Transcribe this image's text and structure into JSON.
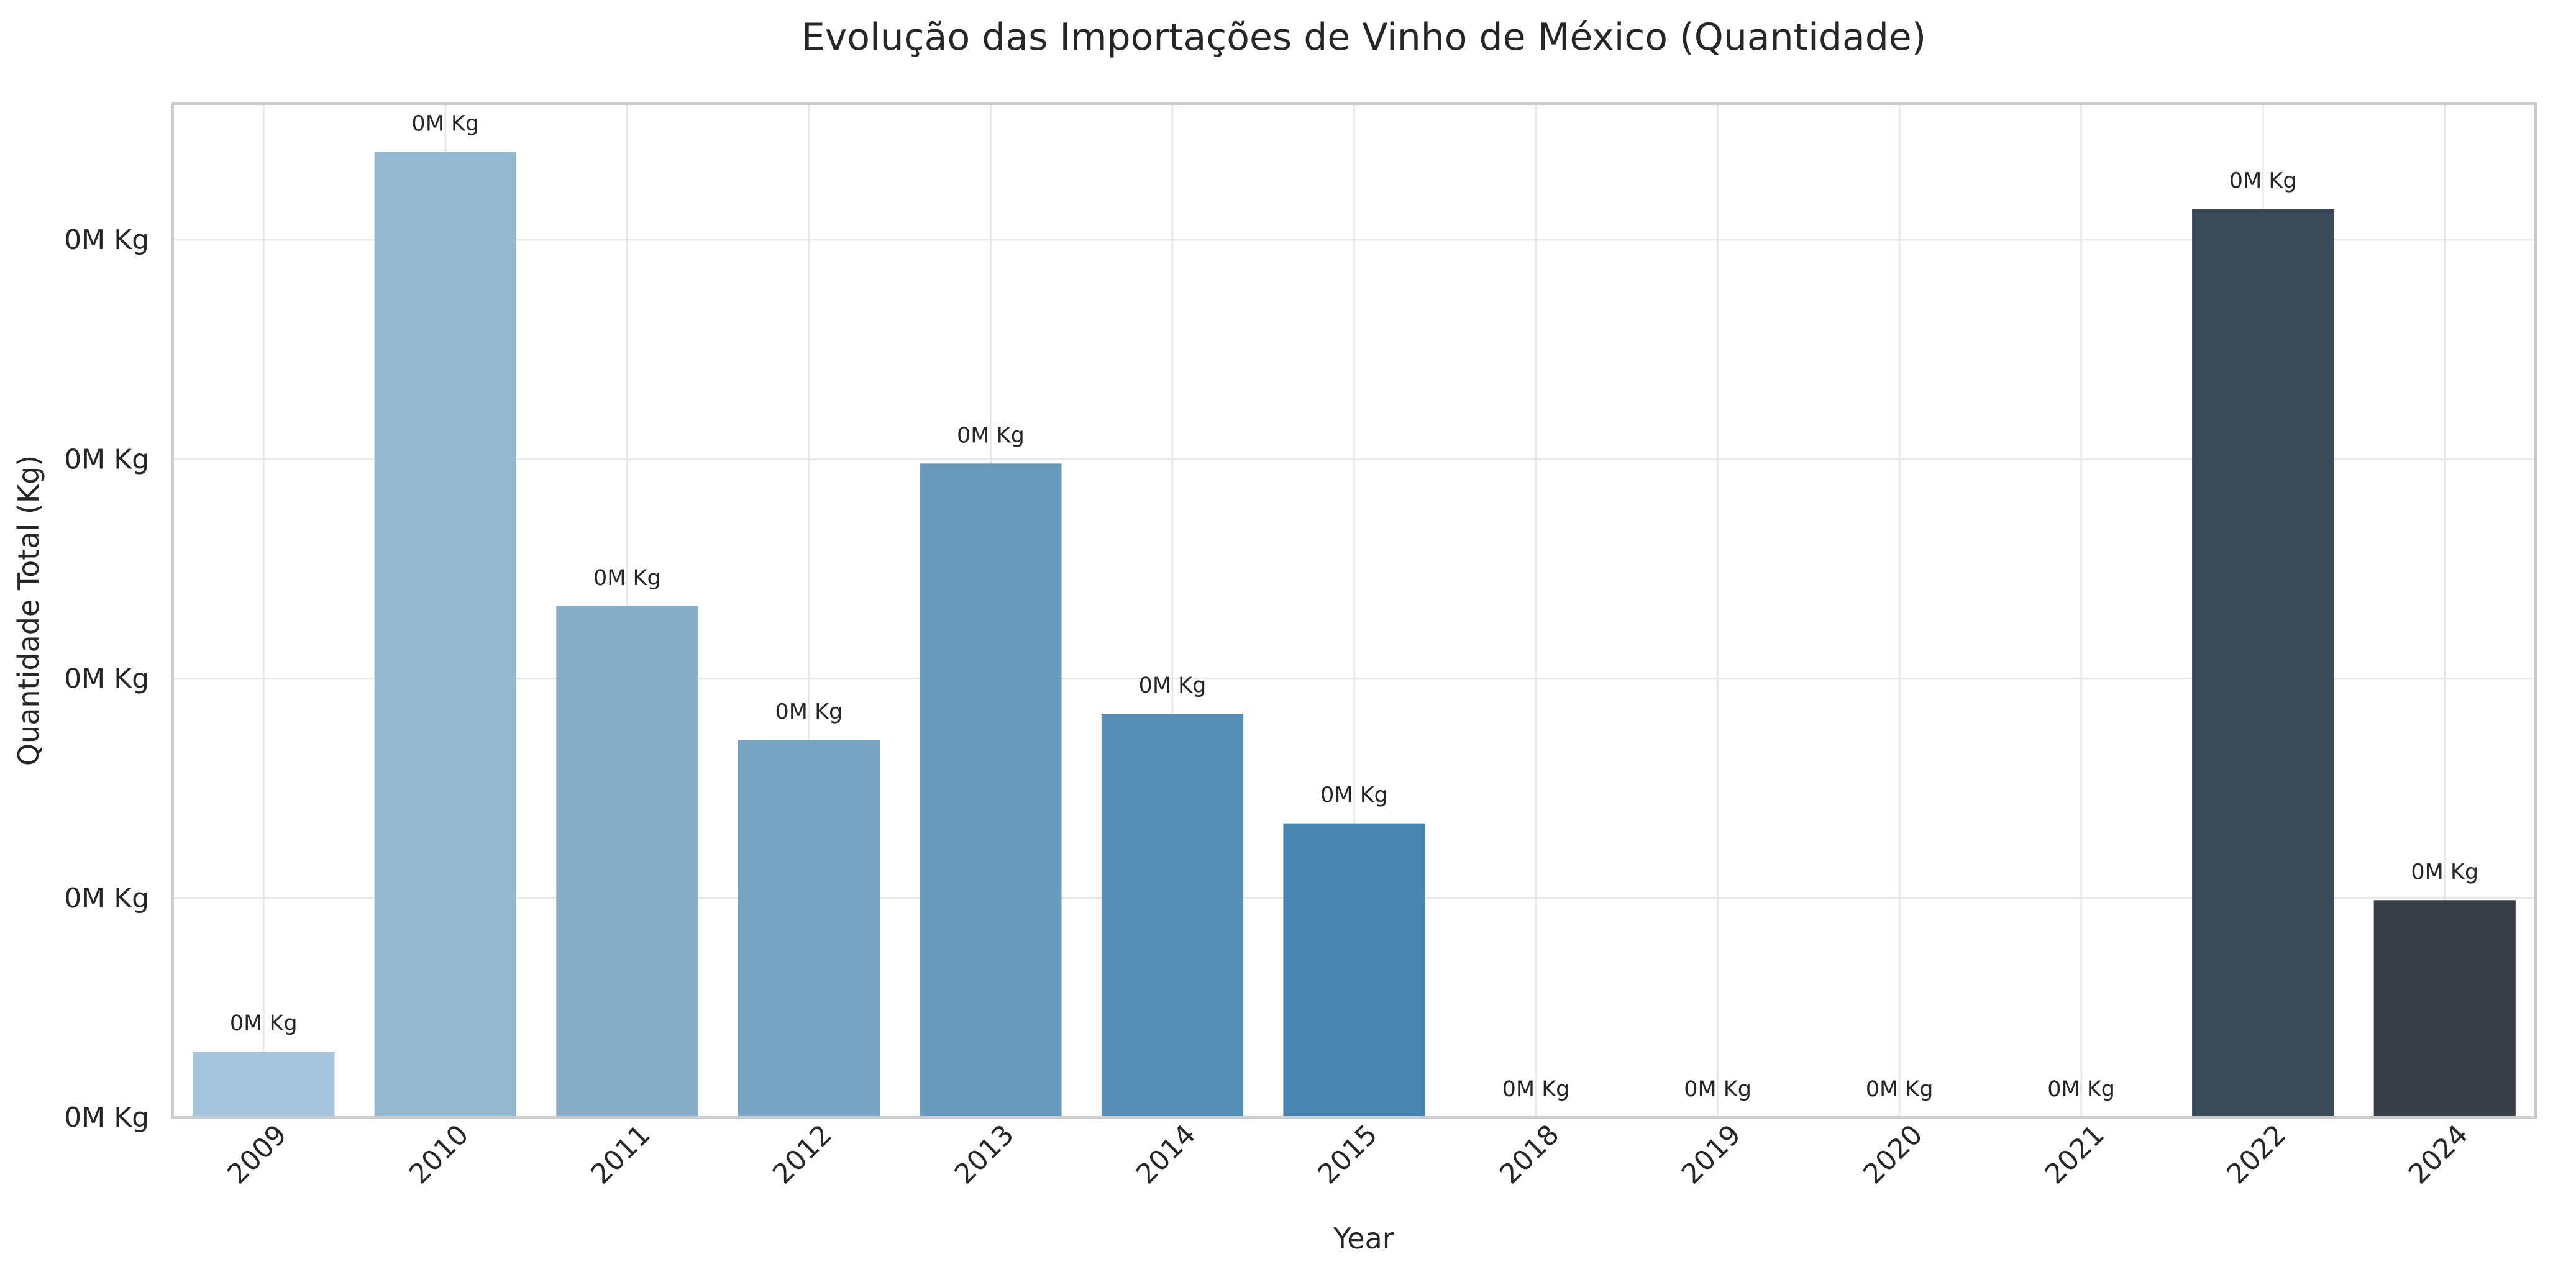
{
  "chart_data": {
    "type": "bar",
    "title": "Evolução das Importações de Vinho de México (Quantidade)",
    "xlabel": "Year",
    "ylabel": "Quantidade Total (Kg)",
    "categories": [
      "2009",
      "2010",
      "2011",
      "2012",
      "2013",
      "2014",
      "2015",
      "2018",
      "2019",
      "2020",
      "2021",
      "2022",
      "2024"
    ],
    "values": [
      300,
      4400,
      2330,
      1720,
      2980,
      1840,
      1340,
      0,
      0,
      0,
      0,
      4140,
      990
    ],
    "data_labels": [
      "0M Kg",
      "0M Kg",
      "0M Kg",
      "0M Kg",
      "0M Kg",
      "0M Kg",
      "0M Kg",
      "0M Kg",
      "0M Kg",
      "0M Kg",
      "0M Kg",
      "0M Kg",
      "0M Kg"
    ],
    "y_ticks": [
      0,
      1000,
      2000,
      3000,
      4000
    ],
    "y_tick_labels": [
      "0M Kg",
      "0M Kg",
      "0M Kg",
      "0M Kg",
      "0M Kg"
    ],
    "ylim": [
      0,
      4620
    ],
    "grid": true,
    "colors": [
      "#a6c4dc",
      "#95b8d2",
      "#87aec9",
      "#77a4c3",
      "#689abc",
      "#5790b7",
      "#4983b0",
      "#3d6d91",
      "#3a5d79",
      "#394f62",
      "#384b5b",
      "#3a4a58",
      "#373d45"
    ]
  }
}
